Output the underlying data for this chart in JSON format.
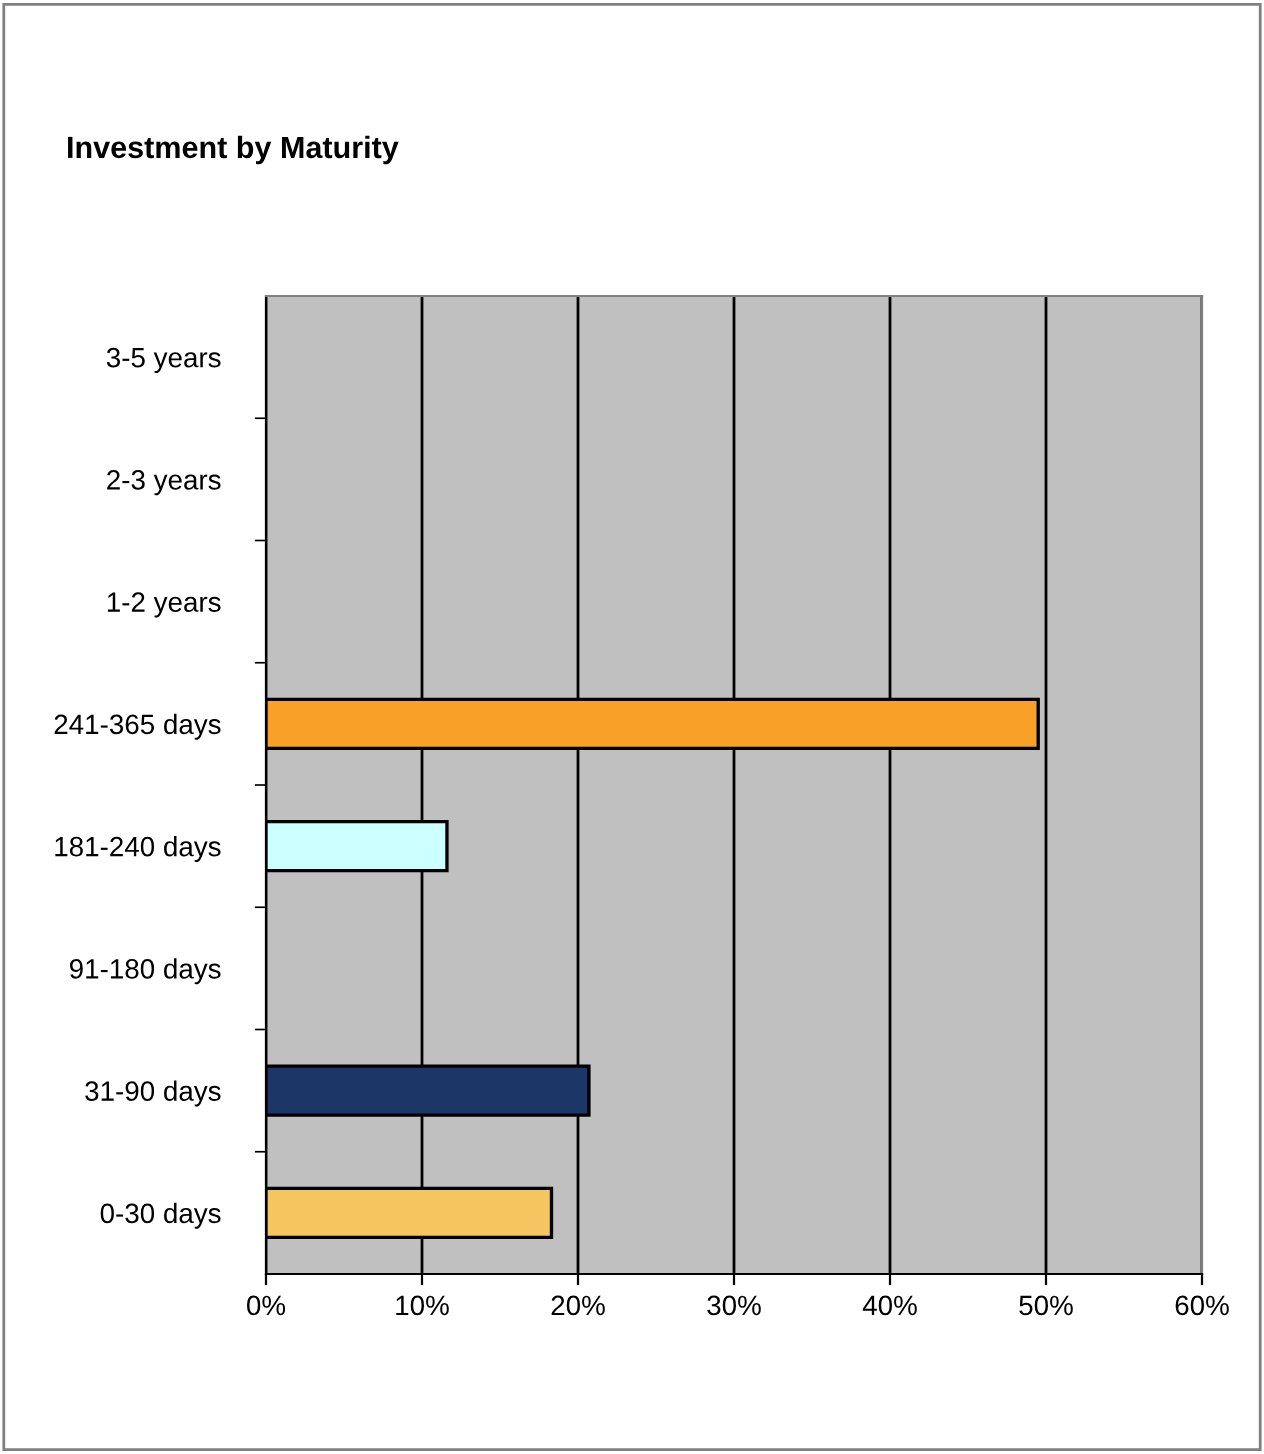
{
  "chart_data": {
    "type": "bar",
    "orientation": "horizontal",
    "title": "Investment by Maturity",
    "categories": [
      "3-5 years",
      "2-3 years",
      "1-2 years",
      "241-365 days",
      "181-240 days",
      "91-180 days",
      "31-90 days",
      "0-30 days"
    ],
    "values": [
      null,
      null,
      null,
      49.5,
      11.6,
      null,
      20.7,
      18.3
    ],
    "colors": [
      "#f9a028",
      "#f9a028",
      "#f9a028",
      "#f9a028",
      "#ccffff",
      "#1c3668",
      "#1c3668",
      "#f5c660"
    ],
    "xlim": [
      0,
      60
    ],
    "xticks": [
      {
        "value": 0,
        "label": "0%"
      },
      {
        "value": 10,
        "label": "10%"
      },
      {
        "value": 20,
        "label": "20%"
      },
      {
        "value": 30,
        "label": "30%"
      },
      {
        "value": 40,
        "label": "40%"
      },
      {
        "value": 50,
        "label": "50%"
      },
      {
        "value": 60,
        "label": "60%"
      }
    ],
    "grid": "x",
    "legend": false
  }
}
